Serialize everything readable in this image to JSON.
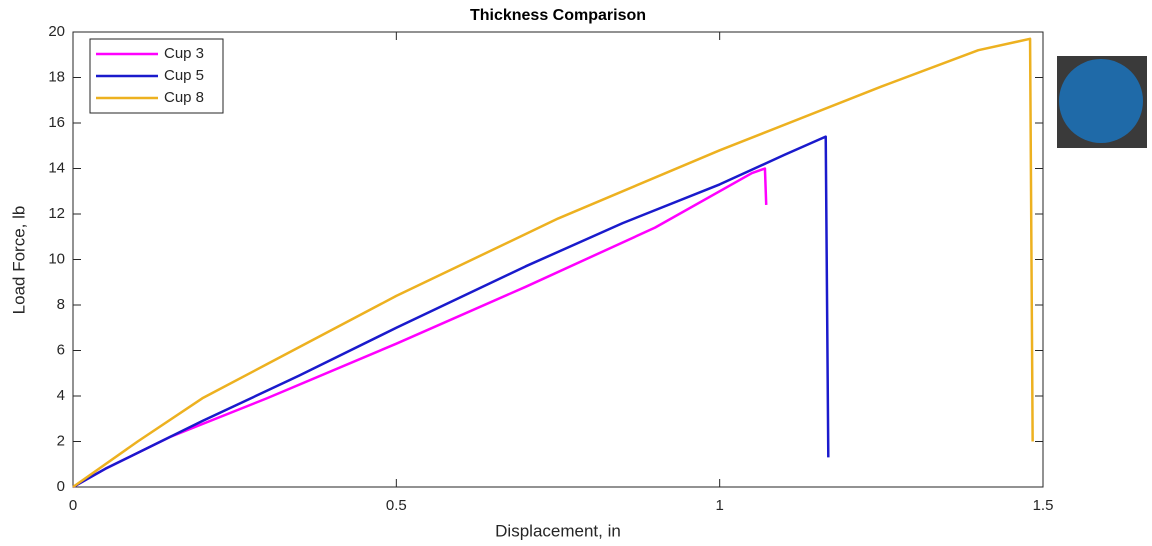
{
  "chart_data": {
    "type": "line",
    "title": "Thickness Comparison",
    "x_label": "Displacement, in",
    "y_label": "Load Force, lb",
    "xlim": [
      0,
      1.5
    ],
    "xticks": [
      0,
      0.5,
      1,
      1.5
    ],
    "ylim": [
      0,
      20
    ],
    "yticks": [
      0,
      2,
      4,
      6,
      8,
      10,
      12,
      14,
      16,
      18,
      20
    ],
    "grid": false,
    "legend": "upper-left",
    "series": [
      {
        "name": "Cup 3",
        "color": "#ff00ff",
        "x": [
          0,
          0.05,
          0.15,
          0.3,
          0.5,
          0.7,
          0.9,
          1.05,
          1.07,
          1.072
        ],
        "values": [
          0,
          0.8,
          2.2,
          3.9,
          6.3,
          8.8,
          11.4,
          13.8,
          14.0,
          12.4
        ]
      },
      {
        "name": "Cup 5",
        "color": "#1a1acc",
        "x": [
          0,
          0.05,
          0.2,
          0.35,
          0.5,
          0.7,
          0.85,
          1.0,
          1.1,
          1.164,
          1.168
        ],
        "values": [
          0,
          0.8,
          2.9,
          4.9,
          7.0,
          9.7,
          11.6,
          13.3,
          14.6,
          15.4,
          1.3
        ]
      },
      {
        "name": "Cup 8",
        "color": "#edb120",
        "x": [
          0,
          0.1,
          0.2,
          0.3,
          0.5,
          0.75,
          1.0,
          1.25,
          1.4,
          1.48,
          1.484
        ],
        "values": [
          0,
          2.0,
          3.9,
          5.4,
          8.4,
          11.8,
          14.8,
          17.6,
          19.2,
          19.7,
          2.0
        ]
      }
    ]
  }
}
